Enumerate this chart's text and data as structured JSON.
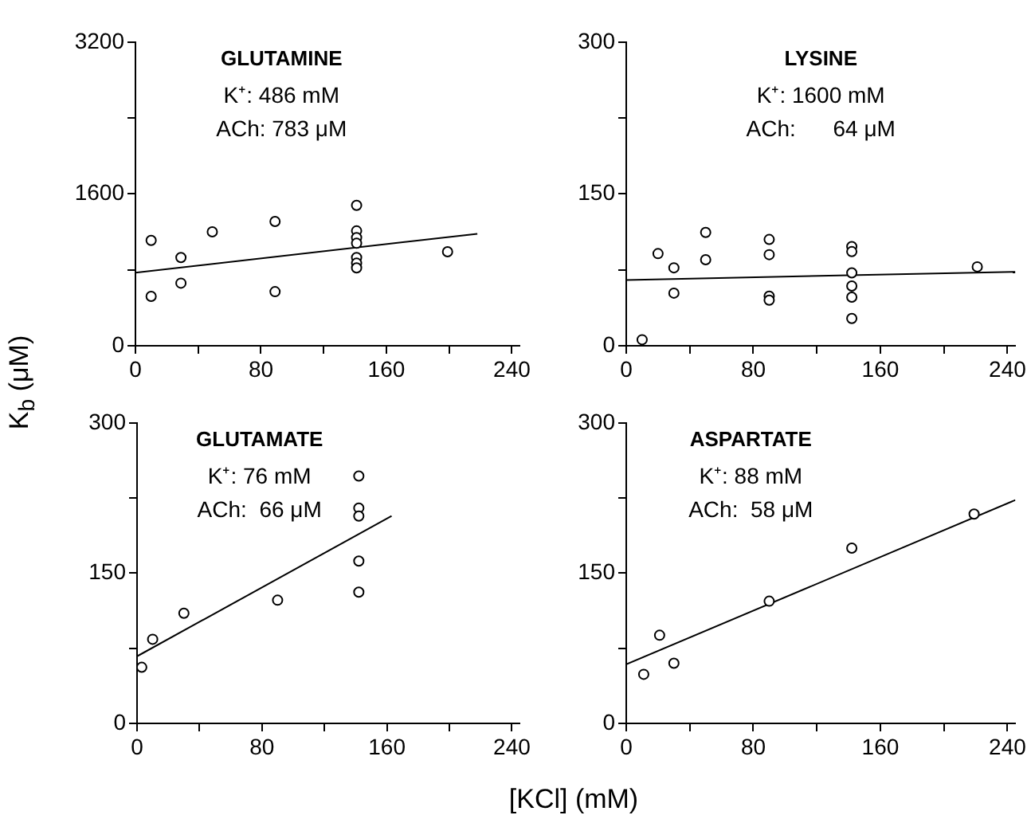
{
  "chart_data": [
    {
      "type": "scatter",
      "title": "GLUTAMINE",
      "ylabel": "K$_{b}$ (μM)",
      "annotations": [
        "K⁺: 486 mM",
        "ACh: 783 μM"
      ],
      "xlim": [
        0,
        245
      ],
      "xticks": [
        0,
        {
          "value": 40,
          "label": null
        },
        80,
        {
          "value": 120,
          "label": null
        },
        160,
        {
          "value": 200,
          "label": null
        },
        240
      ],
      "ylim": [
        0,
        3200
      ],
      "yticks": [
        0,
        {
          "value": 800,
          "label": null
        },
        1600,
        {
          "value": 2400,
          "label": null
        },
        3200
      ],
      "grid": false,
      "legend": false,
      "series": [
        {
          "marker": "circle",
          "color": "#000000",
          "x": [
            10,
            10,
            29,
            29,
            49,
            89,
            89,
            141,
            141,
            141,
            141,
            141,
            141,
            141,
            199
          ],
          "values": [
            1110,
            520,
            930,
            660,
            1200,
            1310,
            570,
            1480,
            1210,
            1140,
            1080,
            930,
            870,
            820,
            990
          ]
        },
        {
          "type": "line",
          "marker": "none",
          "color": "#000000",
          "x": [
            0,
            218
          ],
          "values": [
            770,
            1180
          ]
        }
      ]
    },
    {
      "type": "scatter",
      "title": "LYSINE",
      "annotations": [
        "K⁺: 1600 mM",
        "ACh:      64 μM"
      ],
      "xlim": [
        0,
        245
      ],
      "xticks": [
        0,
        {
          "value": 40,
          "label": null
        },
        80,
        {
          "value": 120,
          "label": null
        },
        160,
        {
          "value": 200,
          "label": null
        },
        240
      ],
      "ylim": [
        0,
        300
      ],
      "yticks": [
        0,
        {
          "value": 75,
          "label": null
        },
        150,
        {
          "value": 225,
          "label": null
        },
        300
      ],
      "grid": false,
      "legend": false,
      "series": [
        {
          "marker": "circle",
          "color": "#000000",
          "x": [
            10,
            20,
            30,
            30,
            50,
            50,
            90,
            90,
            90,
            90,
            142,
            142,
            142,
            142,
            142,
            142,
            221
          ],
          "values": [
            6,
            91,
            77,
            52,
            112,
            85,
            105,
            90,
            49,
            45,
            98,
            93,
            72,
            59,
            48,
            27,
            78
          ]
        },
        {
          "type": "line",
          "marker": "none",
          "color": "#000000",
          "x": [
            0,
            245
          ],
          "values": [
            65,
            73
          ]
        }
      ]
    },
    {
      "type": "scatter",
      "title": "GLUTAMATE",
      "annotations": [
        "K⁺: 76 mM",
        "ACh:  66 μM"
      ],
      "xlim": [
        0,
        245
      ],
      "xticks": [
        0,
        {
          "value": 40,
          "label": null
        },
        80,
        {
          "value": 120,
          "label": null
        },
        160,
        {
          "value": 200,
          "label": null
        },
        240
      ],
      "ylim": [
        0,
        300
      ],
      "yticks": [
        0,
        {
          "value": 75,
          "label": null
        },
        150,
        {
          "value": 225,
          "label": null
        },
        300
      ],
      "grid": false,
      "legend": false,
      "series": [
        {
          "marker": "circle",
          "color": "#000000",
          "x": [
            3,
            10,
            30,
            90,
            142,
            142,
            142,
            142,
            142
          ],
          "values": [
            56,
            84,
            110,
            123,
            247,
            215,
            207,
            162,
            131
          ]
        },
        {
          "type": "line",
          "marker": "none",
          "color": "#000000",
          "x": [
            0,
            163
          ],
          "values": [
            67,
            207
          ]
        }
      ]
    },
    {
      "type": "scatter",
      "title": "ASPARTATE",
      "xlabel": "[KCl]  (mM)",
      "annotations": [
        "K⁺: 88 mM",
        "ACh:  58 μM"
      ],
      "xlim": [
        0,
        245
      ],
      "xticks": [
        0,
        {
          "value": 40,
          "label": null
        },
        80,
        {
          "value": 120,
          "label": null
        },
        160,
        {
          "value": 200,
          "label": null
        },
        240
      ],
      "ylim": [
        0,
        300
      ],
      "yticks": [
        0,
        {
          "value": 75,
          "label": null
        },
        150,
        {
          "value": 225,
          "label": null
        },
        300
      ],
      "grid": false,
      "legend": false,
      "series": [
        {
          "marker": "circle",
          "color": "#000000",
          "x": [
            11,
            21,
            30,
            90,
            142,
            219
          ],
          "values": [
            49,
            88,
            60,
            122,
            175,
            209
          ]
        },
        {
          "type": "line",
          "marker": "none",
          "color": "#000000",
          "x": [
            0,
            245
          ],
          "values": [
            59,
            223
          ]
        }
      ]
    }
  ]
}
